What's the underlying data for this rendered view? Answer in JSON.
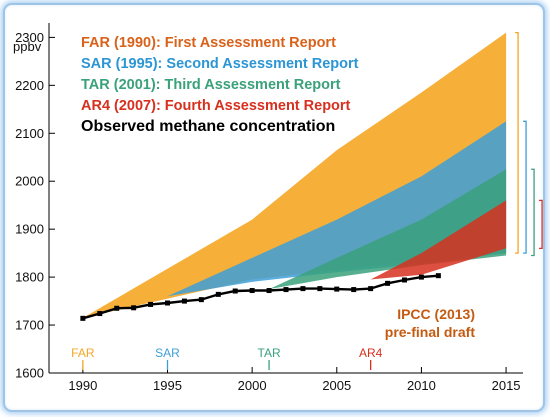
{
  "chart_data": {
    "type": "area",
    "ylabel": "ppbv",
    "xlim": [
      1988,
      2016
    ],
    "ylim": [
      1600,
      2330
    ],
    "x_ticks": [
      1990,
      1995,
      2000,
      2005,
      2010,
      2015
    ],
    "y_ticks": [
      1600,
      1700,
      1800,
      1900,
      2000,
      2100,
      2200,
      2300
    ],
    "colors": {
      "far": "#f5a623",
      "sar": "#3d9fd8",
      "tar": "#3aa17c",
      "ar4": "#d7301f",
      "observed": "#000000",
      "far_text": "#d9621b",
      "sar_text": "#2b96d3",
      "tar_text": "#3aa17c",
      "ar4_text": "#d7301f"
    },
    "legend": [
      {
        "key": "far",
        "label": "FAR (1990): First Assessment Report"
      },
      {
        "key": "sar",
        "label": "SAR (1995): Second Assessment Report"
      },
      {
        "key": "tar",
        "label": "TAR (2001): Third Assessment Report"
      },
      {
        "key": "ar4",
        "label": "AR4 (2007): Fourth Assessment Report"
      },
      {
        "key": "observed",
        "label": "Observed methane concentration"
      }
    ],
    "series": [
      {
        "name": "FAR (1990): First Assessment Report",
        "key": "far",
        "x": [
          1990,
          2000,
          2005,
          2010,
          2015
        ],
        "upper": [
          1715,
          1920,
          2065,
          2185,
          2310
        ],
        "lower": [
          1715,
          1795,
          1815,
          1835,
          1850
        ]
      },
      {
        "name": "SAR (1995): Second Assessment Report",
        "key": "sar",
        "x": [
          1995,
          2000,
          2005,
          2010,
          2015
        ],
        "upper": [
          1760,
          1840,
          1920,
          2010,
          2125
        ],
        "lower": [
          1760,
          1790,
          1810,
          1828,
          1850
        ]
      },
      {
        "name": "TAR (2001): Third Assessment Report",
        "key": "tar",
        "x": [
          2001,
          2005,
          2010,
          2015
        ],
        "upper": [
          1775,
          1840,
          1920,
          2025
        ],
        "lower": [
          1775,
          1800,
          1825,
          1845
        ]
      },
      {
        "name": "AR4 (2007): Fourth Assessment Report",
        "key": "ar4",
        "x": [
          2007,
          2010,
          2015
        ],
        "upper": [
          1795,
          1850,
          1960
        ],
        "lower": [
          1795,
          1805,
          1860
        ]
      }
    ],
    "observed": {
      "name": "Observed methane concentration",
      "x": [
        1990,
        1991,
        1992,
        1993,
        1994,
        1995,
        1996,
        1997,
        1998,
        1999,
        2000,
        2001,
        2002,
        2003,
        2004,
        2005,
        2006,
        2007,
        2008,
        2009,
        2010,
        2011
      ],
      "y": [
        1714,
        1724,
        1735,
        1736,
        1743,
        1746,
        1750,
        1753,
        1764,
        1771,
        1772,
        1772,
        1774,
        1776,
        1776,
        1775,
        1774,
        1776,
        1787,
        1794,
        1800,
        1803
      ]
    },
    "report_markers": [
      {
        "key": "far",
        "label": "FAR",
        "x": 1990
      },
      {
        "key": "sar",
        "label": "SAR",
        "x": 1995
      },
      {
        "key": "tar",
        "label": "TAR",
        "x": 2001
      },
      {
        "key": "ar4",
        "label": "AR4",
        "x": 2007
      }
    ],
    "range_brackets": [
      {
        "key": "far",
        "x": 2015,
        "low": 1850,
        "high": 2310
      },
      {
        "key": "sar",
        "x": 2015,
        "low": 1850,
        "high": 2125
      },
      {
        "key": "tar",
        "x": 2015,
        "low": 1845,
        "high": 2025
      },
      {
        "key": "ar4",
        "x": 2015,
        "low": 1860,
        "high": 1960
      }
    ],
    "annotation": [
      "IPCC (2013)",
      "pre-final draft"
    ]
  }
}
